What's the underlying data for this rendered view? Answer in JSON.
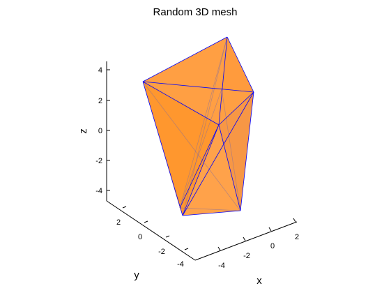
{
  "chart_data": {
    "type": "surface",
    "title": "Random 3D mesh",
    "xlabel": "x",
    "ylabel": "y",
    "zlabel": "z",
    "xticks": [
      "-4",
      "-2",
      "0",
      "2"
    ],
    "yticks": [
      "-4",
      "-2",
      "0",
      "2"
    ],
    "zticks": [
      "-4",
      "-2",
      "0",
      "2",
      "4"
    ],
    "face_color": "#ff8000",
    "edge_color": "#0000ff",
    "face_opacity": 0.82
  }
}
